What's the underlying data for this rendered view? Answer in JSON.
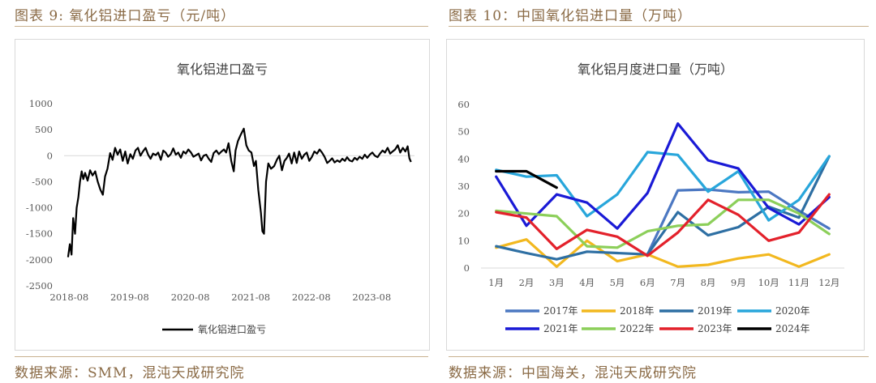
{
  "left_panel": {
    "caption": "图表 9:  氧化铝进口盈亏（元/吨）",
    "source": "数据来源：SMM，混沌天成研究院"
  },
  "right_panel": {
    "caption": "图表 10：中国氧化铝进口量（万吨）",
    "source": "数据来源：中国海关，混沌天成研究院"
  },
  "chart_data": [
    {
      "type": "line",
      "title": "氧化铝进口盈亏",
      "xlabel": "",
      "ylabel": "",
      "ylim": [
        -2500,
        1000
      ],
      "yticks": [
        "1000",
        "500",
        "0",
        "-500",
        "-1000",
        "-1500",
        "-2000",
        "-2500"
      ],
      "xticks": [
        "2018-08",
        "2019-08",
        "2020-08",
        "2021-08",
        "2022-08",
        "2023-08"
      ],
      "legend_position": "bottom",
      "color": "#000000",
      "series": [
        {
          "name": "氧化铝进口盈亏",
          "points": [
            [
              "2018-07-25",
              -1950
            ],
            [
              "2018-08-05",
              -1700
            ],
            [
              "2018-08-15",
              -1900
            ],
            [
              "2018-08-25",
              -1200
            ],
            [
              "2018-09-05",
              -1500
            ],
            [
              "2018-09-15",
              -1000
            ],
            [
              "2018-09-25",
              -800
            ],
            [
              "2018-10-05",
              -500
            ],
            [
              "2018-10-15",
              -300
            ],
            [
              "2018-10-25",
              -450
            ],
            [
              "2018-11-05",
              -330
            ],
            [
              "2018-11-20",
              -480
            ],
            [
              "2018-12-05",
              -280
            ],
            [
              "2018-12-20",
              -380
            ],
            [
              "2019-01-05",
              -300
            ],
            [
              "2019-01-20",
              -500
            ],
            [
              "2019-02-05",
              -650
            ],
            [
              "2019-02-20",
              -750
            ],
            [
              "2019-03-05",
              -400
            ],
            [
              "2019-03-20",
              -250
            ],
            [
              "2019-04-05",
              50
            ],
            [
              "2019-04-20",
              -80
            ],
            [
              "2019-05-05",
              150
            ],
            [
              "2019-05-20",
              20
            ],
            [
              "2019-06-05",
              120
            ],
            [
              "2019-06-20",
              -100
            ],
            [
              "2019-07-05",
              80
            ],
            [
              "2019-07-20",
              -150
            ],
            [
              "2019-08-05",
              30
            ],
            [
              "2019-08-20",
              -60
            ],
            [
              "2019-09-05",
              100
            ],
            [
              "2019-09-20",
              150
            ],
            [
              "2019-10-05",
              0
            ],
            [
              "2019-10-20",
              80
            ],
            [
              "2019-11-05",
              150
            ],
            [
              "2019-11-20",
              20
            ],
            [
              "2019-12-05",
              -60
            ],
            [
              "2019-12-20",
              40
            ],
            [
              "2020-01-05",
              10
            ],
            [
              "2020-01-20",
              60
            ],
            [
              "2020-02-05",
              -80
            ],
            [
              "2020-02-20",
              100
            ],
            [
              "2020-03-05",
              60
            ],
            [
              "2020-03-20",
              -20
            ],
            [
              "2020-04-05",
              30
            ],
            [
              "2020-04-20",
              140
            ],
            [
              "2020-05-05",
              20
            ],
            [
              "2020-05-20",
              60
            ],
            [
              "2020-06-05",
              -40
            ],
            [
              "2020-06-20",
              80
            ],
            [
              "2020-07-05",
              40
            ],
            [
              "2020-07-20",
              120
            ],
            [
              "2020-08-05",
              60
            ],
            [
              "2020-08-20",
              -20
            ],
            [
              "2020-09-05",
              10
            ],
            [
              "2020-09-20",
              40
            ],
            [
              "2020-10-05",
              -90
            ],
            [
              "2020-10-20",
              0
            ],
            [
              "2020-11-05",
              20
            ],
            [
              "2020-11-20",
              -60
            ],
            [
              "2020-12-05",
              -120
            ],
            [
              "2020-12-20",
              50
            ],
            [
              "2021-01-05",
              100
            ],
            [
              "2021-01-20",
              30
            ],
            [
              "2021-02-05",
              80
            ],
            [
              "2021-02-20",
              120
            ],
            [
              "2021-03-05",
              60
            ],
            [
              "2021-03-20",
              240
            ],
            [
              "2021-04-05",
              -100
            ],
            [
              "2021-04-20",
              -300
            ],
            [
              "2021-05-01",
              100
            ],
            [
              "2021-05-15",
              280
            ],
            [
              "2021-06-01",
              400
            ],
            [
              "2021-06-20",
              520
            ],
            [
              "2021-07-05",
              200
            ],
            [
              "2021-07-20",
              100
            ],
            [
              "2021-08-05",
              60
            ],
            [
              "2021-08-20",
              -200
            ],
            [
              "2021-09-01",
              -100
            ],
            [
              "2021-09-15",
              -650
            ],
            [
              "2021-10-01",
              -1100
            ],
            [
              "2021-10-10",
              -1450
            ],
            [
              "2021-10-20",
              -1500
            ],
            [
              "2021-11-01",
              -500
            ],
            [
              "2021-11-15",
              -150
            ],
            [
              "2021-12-01",
              -250
            ],
            [
              "2021-12-20",
              -200
            ],
            [
              "2022-01-05",
              -80
            ],
            [
              "2022-01-20",
              0
            ],
            [
              "2022-02-05",
              -280
            ],
            [
              "2022-02-20",
              -100
            ],
            [
              "2022-03-05",
              -50
            ],
            [
              "2022-03-20",
              40
            ],
            [
              "2022-04-05",
              -150
            ],
            [
              "2022-04-20",
              60
            ],
            [
              "2022-05-05",
              -140
            ],
            [
              "2022-05-20",
              80
            ],
            [
              "2022-06-05",
              -60
            ],
            [
              "2022-06-20",
              20
            ],
            [
              "2022-07-05",
              60
            ],
            [
              "2022-07-20",
              -100
            ],
            [
              "2022-08-05",
              -20
            ],
            [
              "2022-08-20",
              80
            ],
            [
              "2022-09-05",
              40
            ],
            [
              "2022-09-20",
              120
            ],
            [
              "2022-10-05",
              60
            ],
            [
              "2022-10-20",
              -20
            ],
            [
              "2022-11-05",
              -140
            ],
            [
              "2022-11-20",
              -100
            ],
            [
              "2022-12-05",
              -50
            ],
            [
              "2022-12-20",
              -130
            ],
            [
              "2023-01-05",
              -90
            ],
            [
              "2023-01-20",
              -120
            ],
            [
              "2023-02-05",
              -60
            ],
            [
              "2023-02-20",
              -100
            ],
            [
              "2023-03-05",
              -30
            ],
            [
              "2023-03-20",
              -90
            ],
            [
              "2023-04-05",
              -110
            ],
            [
              "2023-04-20",
              -40
            ],
            [
              "2023-05-05",
              -80
            ],
            [
              "2023-05-20",
              -20
            ],
            [
              "2023-06-05",
              -60
            ],
            [
              "2023-06-20",
              20
            ],
            [
              "2023-07-05",
              -40
            ],
            [
              "2023-07-20",
              20
            ],
            [
              "2023-08-05",
              60
            ],
            [
              "2023-08-20",
              0
            ],
            [
              "2023-09-05",
              -30
            ],
            [
              "2023-09-20",
              40
            ],
            [
              "2023-10-05",
              100
            ],
            [
              "2023-10-20",
              60
            ],
            [
              "2023-11-05",
              150
            ],
            [
              "2023-11-20",
              40
            ],
            [
              "2023-12-05",
              80
            ],
            [
              "2023-12-20",
              120
            ],
            [
              "2024-01-05",
              200
            ],
            [
              "2024-01-20",
              60
            ],
            [
              "2024-02-05",
              150
            ],
            [
              "2024-02-20",
              80
            ],
            [
              "2024-03-05",
              180
            ],
            [
              "2024-03-15",
              -50
            ],
            [
              "2024-03-25",
              -120
            ]
          ]
        }
      ]
    },
    {
      "type": "line",
      "title": "氧化铝月度进口量（万吨）",
      "xlabel": "",
      "ylabel": "",
      "ylim": [
        0,
        60
      ],
      "yticks": [
        "60",
        "50",
        "40",
        "30",
        "20",
        "10",
        "0"
      ],
      "categories": [
        "1月",
        "2月",
        "3月",
        "4月",
        "5月",
        "6月",
        "7月",
        "8月",
        "9月",
        "10月",
        "11月",
        "12月"
      ],
      "legend_position": "bottom",
      "series": [
        {
          "name": "2017年",
          "color": "#4c78c2",
          "values": [
            null,
            null,
            null,
            null,
            null,
            5,
            28.5,
            28.8,
            27.8,
            28,
            21,
            14.5
          ]
        },
        {
          "name": "2018年",
          "color": "#f2b81f",
          "values": [
            7.5,
            10.5,
            0.5,
            10,
            2.5,
            5,
            0.5,
            1.2,
            3.5,
            5,
            0.5,
            5
          ]
        },
        {
          "name": "2019年",
          "color": "#2e6fa3",
          "values": [
            8,
            5.5,
            3.2,
            6,
            5.5,
            5,
            20.5,
            12,
            15,
            22.5,
            18.5,
            41
          ]
        },
        {
          "name": "2020年",
          "color": "#28a6db",
          "values": [
            36,
            33.5,
            34,
            19,
            27,
            42.5,
            41.5,
            28,
            35.5,
            17.5,
            25,
            41
          ]
        },
        {
          "name": "2021年",
          "color": "#1a1ad6",
          "values": [
            33.5,
            15.5,
            27,
            24,
            14.5,
            27.5,
            53,
            39.5,
            36.5,
            22,
            16,
            26
          ]
        },
        {
          "name": "2022年",
          "color": "#8ccf5a",
          "values": [
            21,
            20,
            19,
            8,
            7.5,
            13.5,
            15.5,
            16,
            25,
            25,
            20,
            12.5
          ]
        },
        {
          "name": "2023年",
          "color": "#e3212b",
          "values": [
            20.5,
            18.5,
            7,
            14,
            11.5,
            4.5,
            13,
            25,
            19.5,
            10,
            13,
            27
          ]
        },
        {
          "name": "2024年",
          "color": "#000000",
          "values": [
            35.5,
            35.5,
            29.5,
            null,
            null,
            null,
            null,
            null,
            null,
            null,
            null,
            null
          ]
        }
      ]
    }
  ]
}
